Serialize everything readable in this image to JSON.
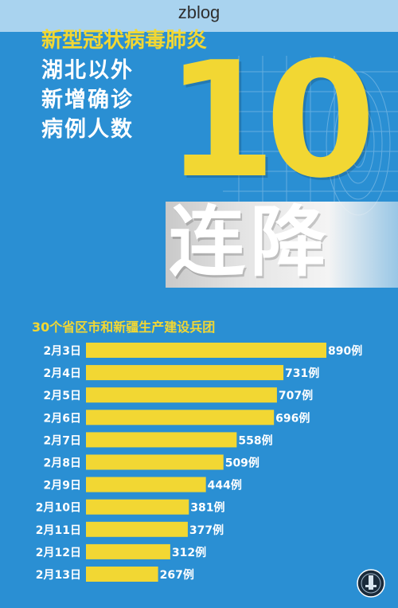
{
  "watermark": "zblog",
  "headline": {
    "line1": "新型冠状病毒肺炎",
    "line2": "湖北以外",
    "line3": "新增确诊",
    "line4": "病例人数"
  },
  "big_number": "10",
  "band_text": "连降",
  "chart_data": {
    "type": "bar",
    "title": "30个省区市和新疆生产建设兵团",
    "categories": [
      "2月3日",
      "2月4日",
      "2月5日",
      "2月6日",
      "2月7日",
      "2月8日",
      "2月9日",
      "2月10日",
      "2月11日",
      "2月12日",
      "2月13日"
    ],
    "values": [
      890,
      731,
      707,
      696,
      558,
      509,
      444,
      381,
      377,
      312,
      267
    ],
    "value_suffix": "例",
    "xlim": [
      0,
      890
    ],
    "orientation": "horizontal",
    "grid": false,
    "colors": {
      "bar": "#f2d733",
      "label": "#ffffff",
      "background": "#2a8fd3"
    }
  }
}
